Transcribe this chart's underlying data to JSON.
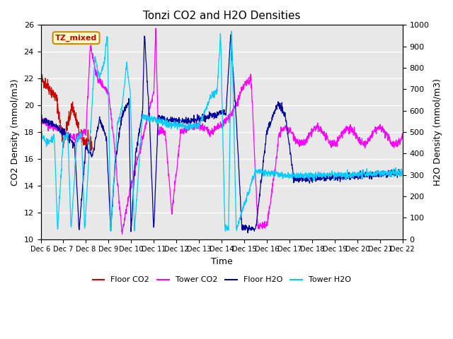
{
  "title": "Tonzi CO2 and H2O Densities",
  "xlabel": "Time",
  "ylabel_left": "CO2 Density (mmol/m3)",
  "ylabel_right": "H2O Density (mmol/m3)",
  "ylim_left": [
    10,
    26
  ],
  "ylim_right": [
    0,
    1000
  ],
  "annotation_text": "TZ_mixed",
  "annotation_color": "#cc0000",
  "annotation_bg": "#ffffcc",
  "annotation_edge": "#cc8800",
  "colors": {
    "floor_co2": "#cc0000",
    "tower_co2": "#ff00ff",
    "floor_h2o": "#000099",
    "tower_h2o": "#00ccff"
  },
  "legend_labels": [
    "Floor CO2",
    "Tower CO2",
    "Floor H2O",
    "Tower H2O"
  ],
  "background_color": "#e8e8e8",
  "grid_color": "#ffffff",
  "yticks_left": [
    10,
    12,
    14,
    16,
    18,
    20,
    22,
    24,
    26
  ],
  "yticks_right": [
    0,
    100,
    200,
    300,
    400,
    500,
    600,
    700,
    800,
    900,
    1000
  ]
}
